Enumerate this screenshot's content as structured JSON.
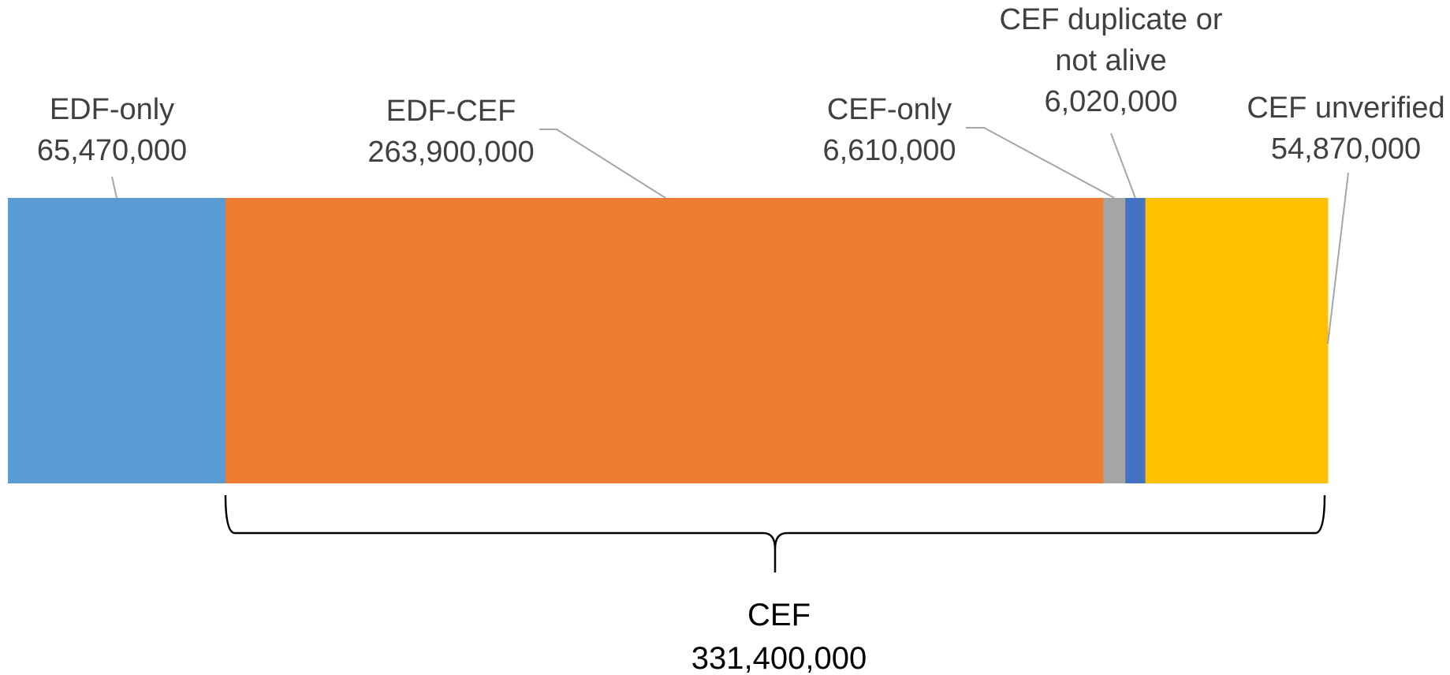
{
  "chart_data": {
    "type": "bar",
    "orientation": "horizontal-stacked",
    "title": "",
    "xlabel": "",
    "ylabel": "",
    "grid": false,
    "segments": [
      {
        "label": "EDF-only",
        "value": 65470000,
        "value_label": "65,470,000",
        "color": "#5b9bd5"
      },
      {
        "label": "EDF-CEF",
        "value": 263900000,
        "value_label": "263,900,000",
        "color": "#ed7d31"
      },
      {
        "label": "CEF-only",
        "value": 6610000,
        "value_label": "6,610,000",
        "color": "#a5a5a5"
      },
      {
        "label": "CEF duplicate or not alive",
        "label_lines": [
          "CEF duplicate or",
          "not alive"
        ],
        "value": 6020000,
        "value_label": "6,020,000",
        "color": "#4472c4"
      },
      {
        "label": "CEF unverified",
        "value": 54870000,
        "value_label": "54,870,000",
        "color": "#ffc000"
      }
    ],
    "bracket": {
      "label": "CEF",
      "value": 331400000,
      "value_label": "331,400,000",
      "spans_segments": [
        "EDF-CEF",
        "CEF-only",
        "CEF duplicate or not alive",
        "CEF unverified"
      ]
    }
  }
}
